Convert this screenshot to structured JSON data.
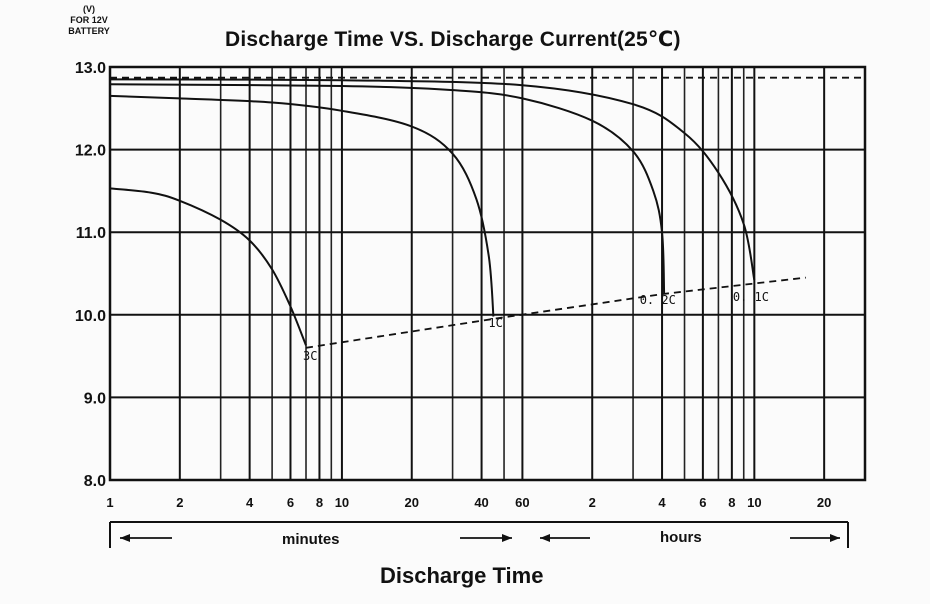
{
  "y_unit_labels": [
    "(V)",
    "FOR 12V",
    "BATTERY"
  ],
  "chart_data": {
    "type": "line",
    "title": "Discharge Time VS. Discharge Current(25℃)",
    "xlabel": "Discharge Time",
    "ylabel": "",
    "x_scale": "log",
    "x_unit": "minutes",
    "xlim": [
      1,
      1800
    ],
    "ylim": [
      8.0,
      13.0
    ],
    "grid": true,
    "x_ticks": [
      {
        "label": "1",
        "minutes": 1
      },
      {
        "label": "2",
        "minutes": 2
      },
      {
        "label": "4",
        "minutes": 4
      },
      {
        "label": "6",
        "minutes": 6
      },
      {
        "label": "8",
        "minutes": 8
      },
      {
        "label": "10",
        "minutes": 10
      },
      {
        "label": "20",
        "minutes": 20
      },
      {
        "label": "40",
        "minutes": 40
      },
      {
        "label": "60",
        "minutes": 60
      },
      {
        "label": "2",
        "minutes": 120
      },
      {
        "label": "4",
        "minutes": 240
      },
      {
        "label": "6",
        "minutes": 360
      },
      {
        "label": "8",
        "minutes": 480
      },
      {
        "label": "10",
        "minutes": 600
      },
      {
        "label": "20",
        "minutes": 1200
      }
    ],
    "y_ticks": [
      {
        "label": "13.0",
        "value": 13.0
      },
      {
        "label": "12.0",
        "value": 12.0
      },
      {
        "label": "11.0",
        "value": 11.0
      },
      {
        "label": "10.0",
        "value": 10.0
      },
      {
        "label": "9.0",
        "value": 9.0
      },
      {
        "label": "8.0",
        "value": 8.0
      }
    ],
    "section_labels": {
      "minutes": "minutes",
      "hours": "hours"
    },
    "series": [
      {
        "name": "3C",
        "points": [
          [
            1,
            11.53
          ],
          [
            1.5,
            11.48
          ],
          [
            2,
            11.38
          ],
          [
            3,
            11.15
          ],
          [
            4,
            10.9
          ],
          [
            5,
            10.55
          ],
          [
            6,
            10.1
          ],
          [
            7,
            9.63
          ]
        ]
      },
      {
        "name": "1C",
        "points": [
          [
            1,
            12.65
          ],
          [
            2,
            12.62
          ],
          [
            5,
            12.57
          ],
          [
            10,
            12.47
          ],
          [
            20,
            12.28
          ],
          [
            30,
            11.95
          ],
          [
            38,
            11.4
          ],
          [
            43,
            10.7
          ],
          [
            45,
            9.98
          ]
        ]
      },
      {
        "name": "0.2C",
        "points": [
          [
            1,
            12.79
          ],
          [
            10,
            12.77
          ],
          [
            30,
            12.72
          ],
          [
            60,
            12.62
          ],
          [
            120,
            12.35
          ],
          [
            180,
            11.98
          ],
          [
            220,
            11.5
          ],
          [
            240,
            11.0
          ],
          [
            245,
            10.26
          ]
        ]
      },
      {
        "name": "0.1C",
        "points": [
          [
            1,
            12.85
          ],
          [
            10,
            12.84
          ],
          [
            60,
            12.78
          ],
          [
            180,
            12.55
          ],
          [
            300,
            12.2
          ],
          [
            420,
            11.72
          ],
          [
            540,
            11.1
          ],
          [
            600,
            10.42
          ]
        ]
      }
    ],
    "annotations": [
      {
        "text": "3C",
        "x": 7.3,
        "y": 9.45
      },
      {
        "text": "1C",
        "x": 46,
        "y": 9.85
      },
      {
        "text": "0. 2C",
        "x": 230,
        "y": 10.13
      },
      {
        "text": "0. 1C",
        "x": 580,
        "y": 10.17
      }
    ],
    "reference_lines": [
      {
        "name": "initial voltage",
        "style": "dashed",
        "points": [
          [
            1,
            12.87
          ],
          [
            1800,
            12.87
          ]
        ]
      },
      {
        "name": "cut-off voltage",
        "style": "dashed",
        "points": [
          [
            7,
            9.6
          ],
          [
            45,
            9.95
          ],
          [
            240,
            10.25
          ],
          [
            1000,
            10.45
          ]
        ]
      }
    ]
  }
}
